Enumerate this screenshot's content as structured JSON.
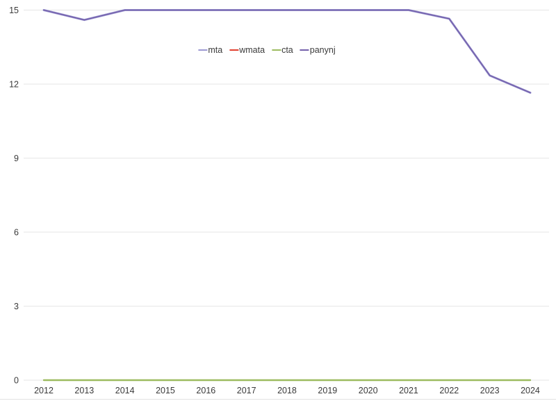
{
  "chart_data": {
    "type": "line",
    "x": [
      "2012",
      "2013",
      "2014",
      "2015",
      "2016",
      "2017",
      "2018",
      "2019",
      "2020",
      "2021",
      "2022",
      "2023",
      "2024"
    ],
    "series": [
      {
        "name": "mta",
        "color": "#9c99d2",
        "values": [
          15,
          14.6,
          15,
          15,
          15,
          15,
          15,
          15,
          15,
          15,
          14.65,
          12.35,
          11.65
        ]
      },
      {
        "name": "wmata",
        "color": "#e2402f",
        "values": [
          0,
          0,
          0,
          0,
          0,
          0,
          0,
          0,
          0,
          0,
          0,
          0,
          0
        ]
      },
      {
        "name": "cta",
        "color": "#9cbb5f",
        "values": [
          0,
          0,
          0,
          0,
          0,
          0,
          0,
          0,
          0,
          0,
          0,
          0,
          0
        ]
      },
      {
        "name": "panynj",
        "color": "#7460ab",
        "values": [
          15,
          14.6,
          15,
          15,
          15,
          15,
          15,
          15,
          15,
          15,
          14.65,
          12.35,
          11.65
        ]
      }
    ],
    "title": "",
    "xlabel": "",
    "ylabel": "",
    "ylim": [
      0,
      15
    ],
    "yticks": [
      0,
      3,
      6,
      9,
      12,
      15
    ],
    "grid": true,
    "legend_position": "top-center",
    "legend_labels": [
      "mta",
      "wmata",
      "cta",
      "panynj"
    ]
  }
}
